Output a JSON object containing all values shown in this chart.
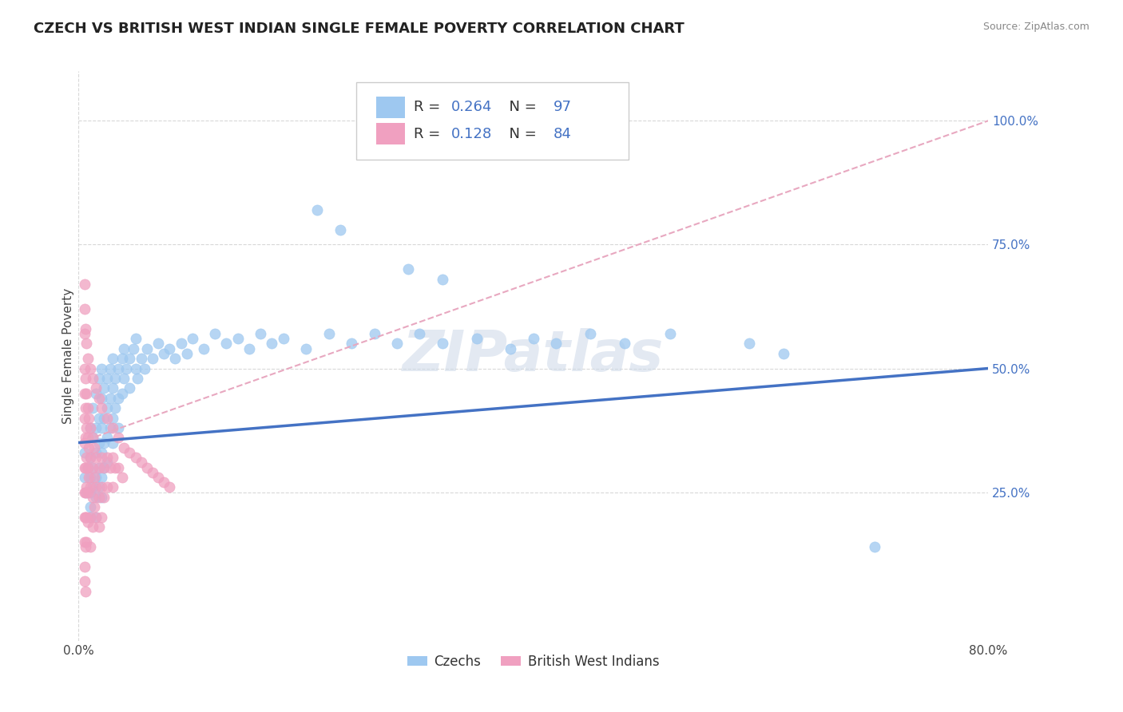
{
  "title": "CZECH VS BRITISH WEST INDIAN SINGLE FEMALE POVERTY CORRELATION CHART",
  "source": "Source: ZipAtlas.com",
  "ylabel": "Single Female Poverty",
  "xlim": [
    0.0,
    0.8
  ],
  "ylim": [
    -0.05,
    1.1
  ],
  "xticks": [
    0.0,
    0.2,
    0.4,
    0.6,
    0.8
  ],
  "xticklabels": [
    "0.0%",
    "",
    "",
    "",
    "80.0%"
  ],
  "yticks": [
    0.0,
    0.25,
    0.5,
    0.75,
    1.0
  ],
  "yticklabels": [
    "",
    "25.0%",
    "50.0%",
    "75.0%",
    "100.0%"
  ],
  "watermark": "ZIPatlas",
  "czech_color": "#9ec8f0",
  "bwi_color": "#f0a0c0",
  "czech_line_color": "#4472c4",
  "bwi_line_color": "#d4a0b0",
  "background_color": "#ffffff",
  "grid_color": "#d8d8d8",
  "title_fontsize": 13,
  "label_fontsize": 11,
  "tick_fontsize": 11,
  "czech_scatter": [
    [
      0.005,
      0.33
    ],
    [
      0.005,
      0.28
    ],
    [
      0.007,
      0.25
    ],
    [
      0.008,
      0.3
    ],
    [
      0.01,
      0.38
    ],
    [
      0.01,
      0.32
    ],
    [
      0.01,
      0.28
    ],
    [
      0.01,
      0.25
    ],
    [
      0.01,
      0.22
    ],
    [
      0.01,
      0.2
    ],
    [
      0.012,
      0.42
    ],
    [
      0.012,
      0.36
    ],
    [
      0.012,
      0.3
    ],
    [
      0.012,
      0.26
    ],
    [
      0.015,
      0.45
    ],
    [
      0.015,
      0.38
    ],
    [
      0.015,
      0.33
    ],
    [
      0.015,
      0.28
    ],
    [
      0.015,
      0.24
    ],
    [
      0.015,
      0.2
    ],
    [
      0.018,
      0.48
    ],
    [
      0.018,
      0.4
    ],
    [
      0.018,
      0.35
    ],
    [
      0.018,
      0.3
    ],
    [
      0.018,
      0.26
    ],
    [
      0.02,
      0.5
    ],
    [
      0.02,
      0.44
    ],
    [
      0.02,
      0.38
    ],
    [
      0.02,
      0.33
    ],
    [
      0.02,
      0.28
    ],
    [
      0.02,
      0.24
    ],
    [
      0.022,
      0.46
    ],
    [
      0.022,
      0.4
    ],
    [
      0.022,
      0.35
    ],
    [
      0.022,
      0.3
    ],
    [
      0.025,
      0.48
    ],
    [
      0.025,
      0.42
    ],
    [
      0.025,
      0.36
    ],
    [
      0.025,
      0.31
    ],
    [
      0.028,
      0.5
    ],
    [
      0.028,
      0.44
    ],
    [
      0.028,
      0.38
    ],
    [
      0.03,
      0.52
    ],
    [
      0.03,
      0.46
    ],
    [
      0.03,
      0.4
    ],
    [
      0.03,
      0.35
    ],
    [
      0.032,
      0.48
    ],
    [
      0.032,
      0.42
    ],
    [
      0.035,
      0.5
    ],
    [
      0.035,
      0.44
    ],
    [
      0.035,
      0.38
    ],
    [
      0.038,
      0.52
    ],
    [
      0.038,
      0.45
    ],
    [
      0.04,
      0.54
    ],
    [
      0.04,
      0.48
    ],
    [
      0.042,
      0.5
    ],
    [
      0.045,
      0.52
    ],
    [
      0.045,
      0.46
    ],
    [
      0.048,
      0.54
    ],
    [
      0.05,
      0.56
    ],
    [
      0.05,
      0.5
    ],
    [
      0.052,
      0.48
    ],
    [
      0.055,
      0.52
    ],
    [
      0.058,
      0.5
    ],
    [
      0.06,
      0.54
    ],
    [
      0.065,
      0.52
    ],
    [
      0.07,
      0.55
    ],
    [
      0.075,
      0.53
    ],
    [
      0.08,
      0.54
    ],
    [
      0.085,
      0.52
    ],
    [
      0.09,
      0.55
    ],
    [
      0.095,
      0.53
    ],
    [
      0.1,
      0.56
    ],
    [
      0.11,
      0.54
    ],
    [
      0.12,
      0.57
    ],
    [
      0.13,
      0.55
    ],
    [
      0.14,
      0.56
    ],
    [
      0.15,
      0.54
    ],
    [
      0.16,
      0.57
    ],
    [
      0.17,
      0.55
    ],
    [
      0.18,
      0.56
    ],
    [
      0.2,
      0.54
    ],
    [
      0.22,
      0.57
    ],
    [
      0.24,
      0.55
    ],
    [
      0.26,
      0.57
    ],
    [
      0.28,
      0.55
    ],
    [
      0.3,
      0.57
    ],
    [
      0.32,
      0.55
    ],
    [
      0.35,
      0.56
    ],
    [
      0.38,
      0.54
    ],
    [
      0.4,
      0.56
    ],
    [
      0.42,
      0.55
    ],
    [
      0.45,
      0.57
    ],
    [
      0.48,
      0.55
    ],
    [
      0.52,
      0.57
    ],
    [
      0.21,
      0.82
    ],
    [
      0.23,
      0.78
    ],
    [
      0.29,
      0.7
    ],
    [
      0.32,
      0.68
    ],
    [
      0.59,
      0.55
    ],
    [
      0.62,
      0.53
    ],
    [
      0.7,
      0.14
    ]
  ],
  "bwi_scatter": [
    [
      0.005,
      0.57
    ],
    [
      0.005,
      0.5
    ],
    [
      0.005,
      0.45
    ],
    [
      0.005,
      0.4
    ],
    [
      0.005,
      0.35
    ],
    [
      0.005,
      0.3
    ],
    [
      0.005,
      0.25
    ],
    [
      0.005,
      0.2
    ],
    [
      0.005,
      0.15
    ],
    [
      0.005,
      0.1
    ],
    [
      0.006,
      0.48
    ],
    [
      0.006,
      0.42
    ],
    [
      0.006,
      0.36
    ],
    [
      0.006,
      0.3
    ],
    [
      0.006,
      0.25
    ],
    [
      0.006,
      0.2
    ],
    [
      0.006,
      0.14
    ],
    [
      0.007,
      0.45
    ],
    [
      0.007,
      0.38
    ],
    [
      0.007,
      0.32
    ],
    [
      0.007,
      0.26
    ],
    [
      0.007,
      0.2
    ],
    [
      0.007,
      0.15
    ],
    [
      0.008,
      0.42
    ],
    [
      0.008,
      0.36
    ],
    [
      0.008,
      0.3
    ],
    [
      0.008,
      0.25
    ],
    [
      0.008,
      0.19
    ],
    [
      0.009,
      0.4
    ],
    [
      0.009,
      0.34
    ],
    [
      0.009,
      0.28
    ],
    [
      0.01,
      0.38
    ],
    [
      0.01,
      0.32
    ],
    [
      0.01,
      0.26
    ],
    [
      0.01,
      0.2
    ],
    [
      0.01,
      0.14
    ],
    [
      0.012,
      0.36
    ],
    [
      0.012,
      0.3
    ],
    [
      0.012,
      0.24
    ],
    [
      0.012,
      0.18
    ],
    [
      0.014,
      0.34
    ],
    [
      0.014,
      0.28
    ],
    [
      0.014,
      0.22
    ],
    [
      0.015,
      0.32
    ],
    [
      0.015,
      0.26
    ],
    [
      0.015,
      0.2
    ],
    [
      0.018,
      0.3
    ],
    [
      0.018,
      0.24
    ],
    [
      0.018,
      0.18
    ],
    [
      0.02,
      0.32
    ],
    [
      0.02,
      0.26
    ],
    [
      0.02,
      0.2
    ],
    [
      0.022,
      0.3
    ],
    [
      0.022,
      0.24
    ],
    [
      0.025,
      0.32
    ],
    [
      0.025,
      0.26
    ],
    [
      0.028,
      0.3
    ],
    [
      0.03,
      0.32
    ],
    [
      0.03,
      0.26
    ],
    [
      0.032,
      0.3
    ],
    [
      0.035,
      0.3
    ],
    [
      0.038,
      0.28
    ],
    [
      0.005,
      0.62
    ],
    [
      0.005,
      0.67
    ],
    [
      0.006,
      0.58
    ],
    [
      0.007,
      0.55
    ],
    [
      0.008,
      0.52
    ],
    [
      0.01,
      0.5
    ],
    [
      0.012,
      0.48
    ],
    [
      0.015,
      0.46
    ],
    [
      0.018,
      0.44
    ],
    [
      0.02,
      0.42
    ],
    [
      0.025,
      0.4
    ],
    [
      0.03,
      0.38
    ],
    [
      0.035,
      0.36
    ],
    [
      0.04,
      0.34
    ],
    [
      0.045,
      0.33
    ],
    [
      0.05,
      0.32
    ],
    [
      0.055,
      0.31
    ],
    [
      0.06,
      0.3
    ],
    [
      0.065,
      0.29
    ],
    [
      0.07,
      0.28
    ],
    [
      0.075,
      0.27
    ],
    [
      0.08,
      0.26
    ],
    [
      0.005,
      0.07
    ],
    [
      0.006,
      0.05
    ]
  ]
}
